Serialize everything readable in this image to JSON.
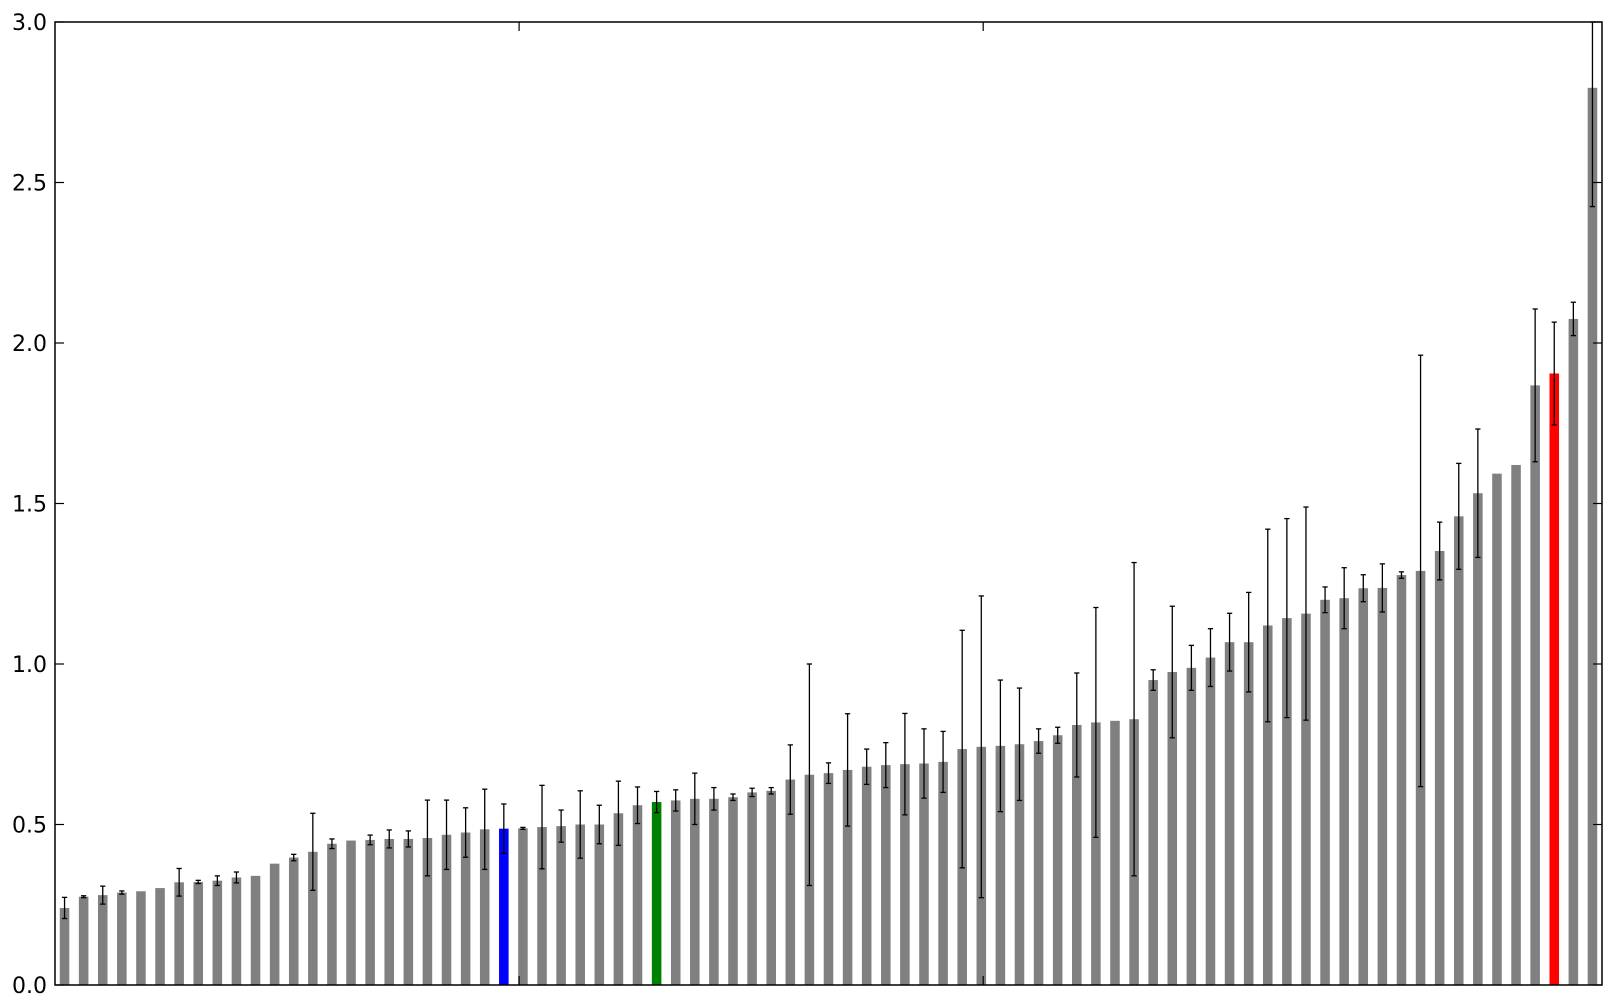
{
  "chart_data": {
    "type": "bar",
    "title": "",
    "xlabel": "",
    "ylabel": "",
    "ylim": [
      0,
      3.0
    ],
    "yticks": [
      0.0,
      0.5,
      1.0,
      1.5,
      2.0,
      2.5,
      3.0
    ],
    "ytick_labels": [
      "0.0",
      "0.5",
      "1.0",
      "1.5",
      "2.0",
      "2.5",
      "3.0"
    ],
    "xticks_shown": false,
    "grid": false,
    "legend": "none",
    "default_color": "#808080",
    "values": [
      0.24,
      0.275,
      0.28,
      0.288,
      0.292,
      0.302,
      0.32,
      0.321,
      0.325,
      0.335,
      0.34,
      0.378,
      0.397,
      0.415,
      0.44,
      0.45,
      0.452,
      0.455,
      0.455,
      0.458,
      0.468,
      0.475,
      0.485,
      0.487,
      0.488,
      0.492,
      0.495,
      0.5,
      0.5,
      0.535,
      0.56,
      0.57,
      0.575,
      0.58,
      0.58,
      0.585,
      0.6,
      0.605,
      0.64,
      0.655,
      0.66,
      0.67,
      0.68,
      0.685,
      0.688,
      0.69,
      0.695,
      0.735,
      0.742,
      0.745,
      0.75,
      0.76,
      0.778,
      0.81,
      0.818,
      0.823,
      0.828,
      0.95,
      0.975,
      0.988,
      1.02,
      1.068,
      1.068,
      1.12,
      1.143,
      1.157,
      1.2,
      1.205,
      1.236,
      1.237,
      1.277,
      1.29,
      1.352,
      1.46,
      1.532,
      1.593,
      1.62,
      1.868,
      1.905,
      2.075,
      2.795
    ],
    "errors": [
      0.033,
      0.003,
      0.028,
      0.005,
      0.0,
      0.0,
      0.043,
      0.005,
      0.015,
      0.017,
      0.0,
      0.0,
      0.01,
      0.12,
      0.015,
      0.0,
      0.015,
      0.028,
      0.025,
      0.118,
      0.108,
      0.077,
      0.125,
      0.077,
      0.003,
      0.13,
      0.05,
      0.105,
      0.06,
      0.1,
      0.057,
      0.033,
      0.033,
      0.08,
      0.035,
      0.01,
      0.013,
      0.01,
      0.108,
      0.345,
      0.032,
      0.175,
      0.055,
      0.07,
      0.158,
      0.108,
      0.095,
      0.37,
      0.47,
      0.205,
      0.175,
      0.038,
      0.025,
      0.162,
      0.358,
      0.0,
      0.488,
      0.032,
      0.205,
      0.07,
      0.09,
      0.09,
      0.155,
      0.3,
      0.31,
      0.332,
      0.04,
      0.095,
      0.042,
      0.075,
      0.01,
      0.672,
      0.09,
      0.165,
      0.2,
      0.0,
      0.0,
      0.238,
      0.16,
      0.052,
      0.37
    ],
    "highlights": [
      {
        "index": 23,
        "color": "#0000ff"
      },
      {
        "index": 31,
        "color": "#008000"
      },
      {
        "index": 78,
        "color": "#ff0000"
      }
    ]
  }
}
